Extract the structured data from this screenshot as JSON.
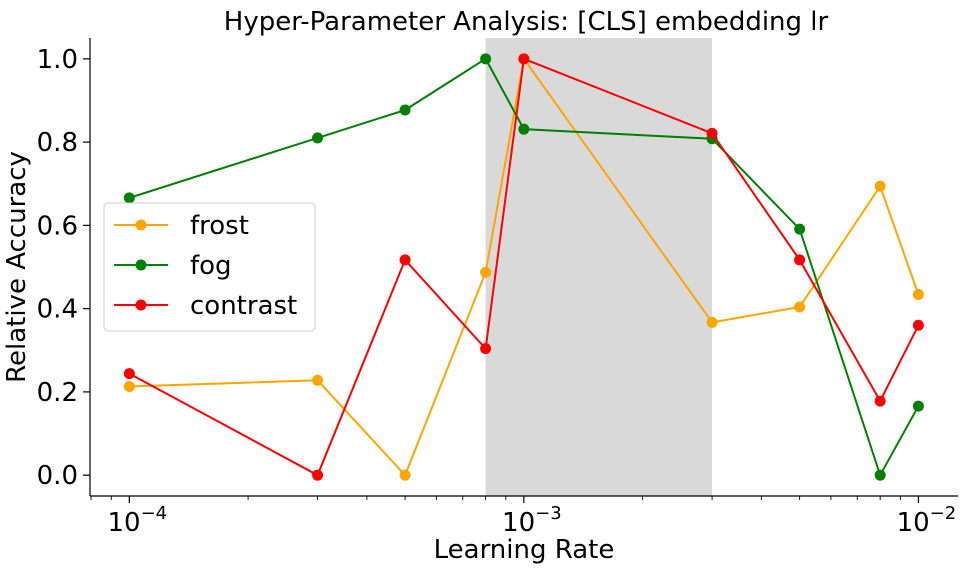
{
  "chart_data": {
    "type": "line",
    "title": "Hyper-Parameter Analysis: [CLS] embedding lr",
    "xlabel": "Learning Rate",
    "ylabel": "Relative Accuracy",
    "xscale": "log",
    "xlim": [
      7.95e-05,
      0.0126
    ],
    "ylim": [
      -0.05,
      1.05
    ],
    "xticks": [
      {
        "value": 0.0001,
        "base": "10",
        "exp": "−4"
      },
      {
        "value": 0.001,
        "base": "10",
        "exp": "−3"
      },
      {
        "value": 0.01,
        "base": "10",
        "exp": "−2"
      }
    ],
    "yticks": [
      {
        "value": 0.0,
        "label": "0.0"
      },
      {
        "value": 0.2,
        "label": "0.2"
      },
      {
        "value": 0.4,
        "label": "0.4"
      },
      {
        "value": 0.6,
        "label": "0.6"
      },
      {
        "value": 0.8,
        "label": "0.8"
      },
      {
        "value": 1.0,
        "label": "1.0"
      }
    ],
    "shaded_region": {
      "x0": 0.0008,
      "x1": 0.003,
      "color": "#d9d9d9"
    },
    "grid": false,
    "legend_position": "center-left",
    "x": [
      0.0001,
      0.0003,
      0.0005,
      0.0008,
      0.001,
      0.003,
      0.005,
      0.008,
      0.01
    ],
    "series": [
      {
        "name": "frost",
        "color": "#ffa500",
        "values": [
          0.213,
          0.228,
          0.0,
          0.487,
          1.0,
          0.367,
          0.404,
          0.694,
          0.434
        ]
      },
      {
        "name": "fog",
        "color": "#008000",
        "values": [
          0.666,
          0.81,
          0.877,
          1.0,
          0.831,
          0.808,
          0.591,
          0.0,
          0.166
        ]
      },
      {
        "name": "contrast",
        "color": "#ff0000",
        "values": [
          0.244,
          0.0,
          0.517,
          0.304,
          1.0,
          0.821,
          0.517,
          0.178,
          0.36
        ]
      }
    ]
  }
}
